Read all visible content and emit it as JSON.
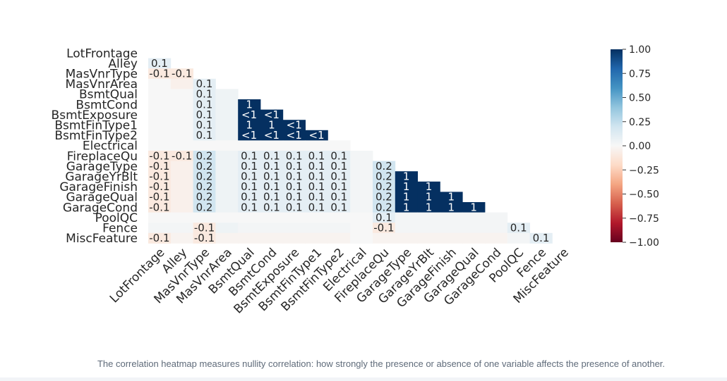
{
  "chart_data": {
    "type": "heatmap",
    "variables": [
      "LotFrontage",
      "Alley",
      "MasVnrType",
      "MasVnrArea",
      "BsmtQual",
      "BsmtCond",
      "BsmtExposure",
      "BsmtFinType1",
      "BsmtFinType2",
      "Electrical",
      "FireplaceQu",
      "GarageType",
      "GarageYrBlt",
      "GarageFinish",
      "GarageQual",
      "GarageCond",
      "PoolQC",
      "Fence",
      "MiscFeature"
    ],
    "values": [
      [],
      [
        0.1
      ],
      [
        -0.1,
        -0.1
      ],
      [
        0,
        -0.05,
        0.1
      ],
      [
        0,
        0,
        0.1,
        0.05
      ],
      [
        0,
        0,
        0.1,
        0.05,
        1
      ],
      [
        0,
        0,
        0.1,
        0.05,
        1,
        1
      ],
      [
        0,
        0,
        0.1,
        0.05,
        1,
        1,
        1
      ],
      [
        0,
        0,
        0.1,
        0.05,
        1,
        1,
        1,
        1
      ],
      [
        0,
        0,
        0,
        0,
        0,
        0,
        0,
        0,
        0
      ],
      [
        -0.1,
        -0.1,
        0.2,
        0.05,
        0.1,
        0.1,
        0.1,
        0.1,
        0.1,
        0.02
      ],
      [
        -0.1,
        -0.05,
        0.2,
        0.05,
        0.1,
        0.1,
        0.1,
        0.1,
        0.1,
        0.02,
        0.2
      ],
      [
        -0.1,
        -0.05,
        0.2,
        0.05,
        0.1,
        0.1,
        0.1,
        0.1,
        0.1,
        0.02,
        0.2,
        1
      ],
      [
        -0.1,
        -0.05,
        0.2,
        0.05,
        0.1,
        0.1,
        0.1,
        0.1,
        0.1,
        0.02,
        0.2,
        1,
        1
      ],
      [
        -0.1,
        -0.05,
        0.2,
        0.05,
        0.1,
        0.1,
        0.1,
        0.1,
        0.1,
        0.02,
        0.2,
        1,
        1,
        1
      ],
      [
        -0.1,
        -0.05,
        0.2,
        0.05,
        0.1,
        0.1,
        0.1,
        0.1,
        0.1,
        0.02,
        0.2,
        1,
        1,
        1,
        1
      ],
      [
        0,
        0,
        0,
        0,
        0,
        0,
        0,
        0,
        0,
        0,
        0.1,
        0.02,
        0.02,
        0.02,
        0.02,
        0.02
      ],
      [
        0.02,
        0.02,
        -0.1,
        0.05,
        0.02,
        0.02,
        0.02,
        0.02,
        0.02,
        0,
        -0.1,
        0.02,
        0.02,
        0.02,
        0.02,
        0.02,
        0.1
      ],
      [
        -0.1,
        -0.03,
        -0.1,
        -0.03,
        -0.03,
        -0.03,
        -0.03,
        -0.03,
        -0.03,
        0,
        -0.03,
        -0.03,
        -0.03,
        -0.03,
        -0.03,
        -0.03,
        0.02,
        0.1
      ]
    ],
    "labels": [
      [],
      [
        "0.1"
      ],
      [
        "-0.1",
        "-0.1"
      ],
      [
        "",
        "",
        "0.1"
      ],
      [
        "",
        "",
        "0.1",
        ""
      ],
      [
        "",
        "",
        "0.1",
        "",
        "1"
      ],
      [
        "",
        "",
        "0.1",
        "",
        "<1",
        "<1"
      ],
      [
        "",
        "",
        "0.1",
        "",
        "1",
        "1",
        "<1"
      ],
      [
        "",
        "",
        "0.1",
        "",
        "<1",
        "<1",
        "<1",
        "<1"
      ],
      [
        "",
        "",
        "",
        "",
        "",
        "",
        "",
        "",
        ""
      ],
      [
        "-0.1",
        "-0.1",
        "0.2",
        "",
        "0.1",
        "0.1",
        "0.1",
        "0.1",
        "0.1",
        ""
      ],
      [
        "-0.1",
        "",
        "0.2",
        "",
        "0.1",
        "0.1",
        "0.1",
        "0.1",
        "0.1",
        "",
        "0.2"
      ],
      [
        "-0.1",
        "",
        "0.2",
        "",
        "0.1",
        "0.1",
        "0.1",
        "0.1",
        "0.1",
        "",
        "0.2",
        "1"
      ],
      [
        "-0.1",
        "",
        "0.2",
        "",
        "0.1",
        "0.1",
        "0.1",
        "0.1",
        "0.1",
        "",
        "0.2",
        "1",
        "1"
      ],
      [
        "-0.1",
        "",
        "0.2",
        "",
        "0.1",
        "0.1",
        "0.1",
        "0.1",
        "0.1",
        "",
        "0.2",
        "1",
        "1",
        "1"
      ],
      [
        "-0.1",
        "",
        "0.2",
        "",
        "0.1",
        "0.1",
        "0.1",
        "0.1",
        "0.1",
        "",
        "0.2",
        "1",
        "1",
        "1",
        "1"
      ],
      [
        "",
        "",
        "",
        "",
        "",
        "",
        "",
        "",
        "",
        "",
        "0.1",
        "",
        "",
        "",
        "",
        ""
      ],
      [
        "",
        "",
        "-0.1",
        "",
        "",
        "",
        "",
        "",
        "",
        "",
        "-0.1",
        "",
        "",
        "",
        "",
        "",
        "0.1"
      ],
      [
        "-0.1",
        "",
        "-0.1",
        "",
        "",
        "",
        "",
        "",
        "",
        "",
        "",
        "",
        "",
        "",
        "",
        "",
        "",
        "0.1"
      ]
    ],
    "colorbar": {
      "min": -1,
      "max": 1,
      "ticks": [
        "1.00",
        "0.75",
        "0.50",
        "0.25",
        "0.00",
        "−0.25",
        "−0.50",
        "−0.75",
        "−1.00"
      ],
      "colors": [
        "#67001f",
        "#b2182b",
        "#d6604d",
        "#f4a582",
        "#fddbc7",
        "#f7f7f7",
        "#d1e5f0",
        "#92c5de",
        "#4393c3",
        "#2166ac",
        "#053061"
      ]
    },
    "title": "",
    "xlabel": "",
    "ylabel": ""
  },
  "caption": "The correlation heatmap measures nullity correlation: how strongly the presence or absence of one variable affects the presence of another."
}
